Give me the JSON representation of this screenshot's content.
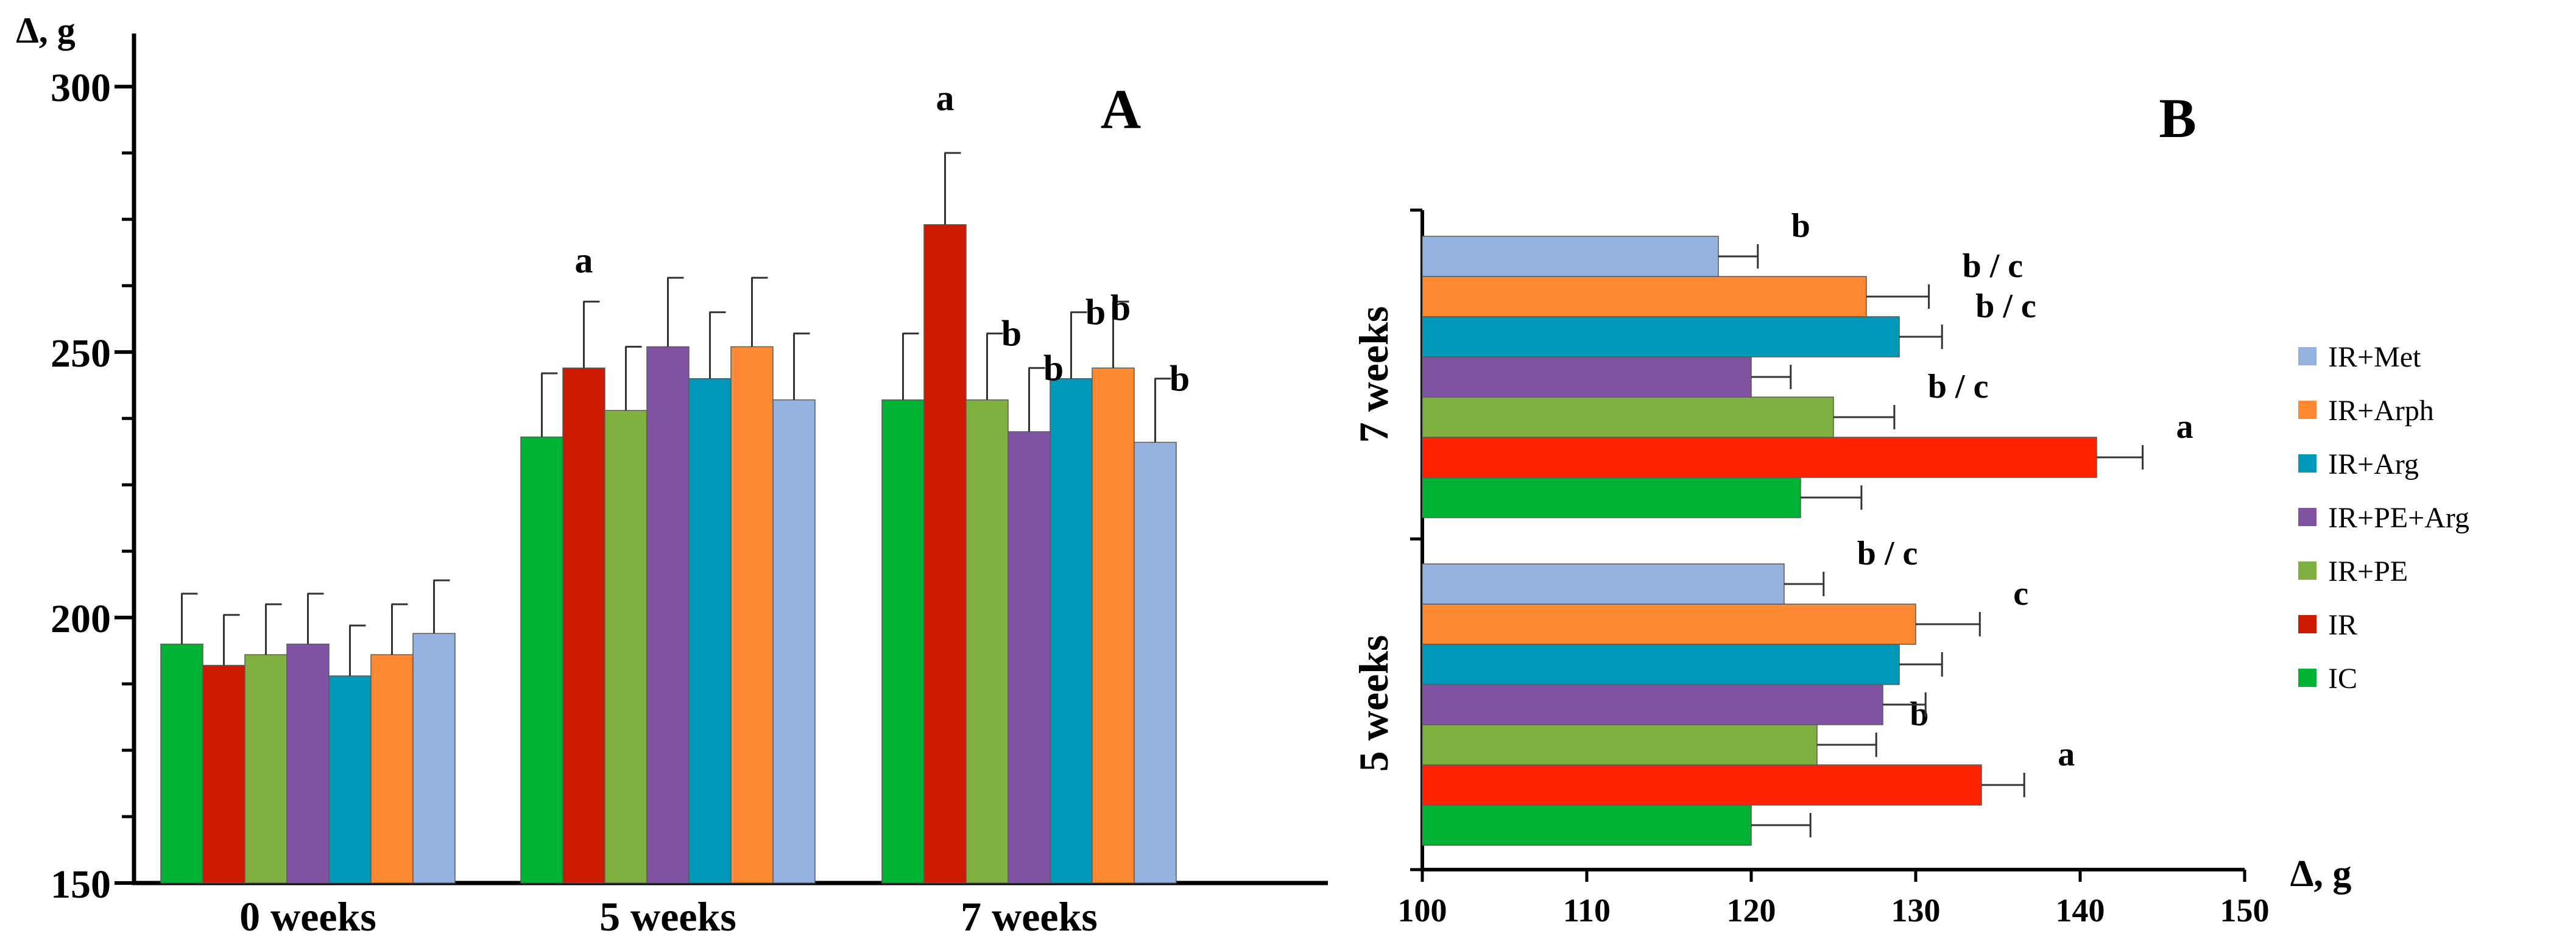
{
  "colors": {
    "IC": "#00b233",
    "IR": "#cc1a00",
    "IR+PE": "#7fb040",
    "IR+PE+Arg": "#7f52a2",
    "IR+Arg": "#0098b8",
    "IR+Arph": "#ff8a33",
    "IR+Met": "#93b2e0",
    "IR_barB": "#ff2200"
  },
  "legend": {
    "items": [
      "IR+Met",
      "IR+Arph",
      "IR+Arg",
      "IR+PE+Arg",
      "IR+PE",
      "IR",
      "IC"
    ]
  },
  "chart_data": [
    {
      "type": "bar",
      "panel_label": "A",
      "ylabel": "Δ, g",
      "ylim": [
        150,
        310
      ],
      "yticks": [
        "150",
        "200",
        "250",
        "300"
      ],
      "categories": [
        "0 weeks",
        "5 weeks",
        "7 weeks"
      ],
      "series": [
        {
          "name": "IC",
          "values": [
            195,
            234,
            241
          ],
          "errors": [
            9.5,
            12,
            12.5
          ],
          "labels": [
            "",
            "",
            ""
          ]
        },
        {
          "name": "IR",
          "values": [
            191,
            247,
            274
          ],
          "errors": [
            9.5,
            12.5,
            13.5
          ],
          "labels": [
            "",
            "a",
            "a"
          ]
        },
        {
          "name": "IR+PE",
          "values": [
            193,
            239,
            241
          ],
          "errors": [
            9.5,
            12,
            12.5
          ],
          "labels": [
            "",
            "",
            "b"
          ]
        },
        {
          "name": "IR+PE+Arg",
          "values": [
            195,
            251,
            235
          ],
          "errors": [
            9.5,
            13,
            12
          ],
          "labels": [
            "",
            "",
            "b"
          ]
        },
        {
          "name": "IR+Arg",
          "values": [
            189,
            245,
            245
          ],
          "errors": [
            9.5,
            12.5,
            12.5
          ],
          "labels": [
            "",
            "",
            "b"
          ]
        },
        {
          "name": "IR+Arph",
          "values": [
            193,
            251,
            247
          ],
          "errors": [
            9.5,
            13,
            12.5
          ],
          "labels": [
            "",
            "",
            "b"
          ]
        },
        {
          "name": "IR+Met",
          "values": [
            197,
            241,
            233
          ],
          "errors": [
            10,
            12.5,
            12
          ],
          "labels": [
            "",
            "",
            "b"
          ]
        }
      ]
    },
    {
      "type": "bar",
      "orientation": "horizontal",
      "panel_label": "B",
      "xlabel": "Δ, g",
      "xlim": [
        100,
        150
      ],
      "xticks": [
        "100",
        "110",
        "120",
        "130",
        "140",
        "150"
      ],
      "categories": [
        "5 weeks",
        "7 weeks"
      ],
      "series": [
        {
          "name": "IC",
          "values": [
            120,
            123
          ],
          "errors": [
            3.6,
            3.7
          ],
          "labels": [
            "",
            ""
          ]
        },
        {
          "name": "IR",
          "values": [
            134,
            141
          ],
          "errors": [
            2.6,
            2.8
          ],
          "labels": [
            "a",
            "a"
          ]
        },
        {
          "name": "IR+PE",
          "values": [
            124,
            125
          ],
          "errors": [
            3.6,
            3.7
          ],
          "labels": [
            "b",
            "b / c"
          ]
        },
        {
          "name": "IR+PE+Arg",
          "values": [
            128,
            120
          ],
          "errors": [
            2.6,
            2.4
          ],
          "labels": [
            "",
            ""
          ]
        },
        {
          "name": "IR+Arg",
          "values": [
            129,
            129
          ],
          "errors": [
            2.6,
            2.6
          ],
          "labels": [
            "",
            "b / c"
          ]
        },
        {
          "name": "IR+Arph",
          "values": [
            130,
            127
          ],
          "errors": [
            3.9,
            3.8
          ],
          "labels": [
            "c",
            "b / c"
          ]
        },
        {
          "name": "IR+Met",
          "values": [
            122,
            118
          ],
          "errors": [
            2.4,
            2.4
          ],
          "labels": [
            "b / c",
            "b"
          ]
        }
      ]
    }
  ]
}
